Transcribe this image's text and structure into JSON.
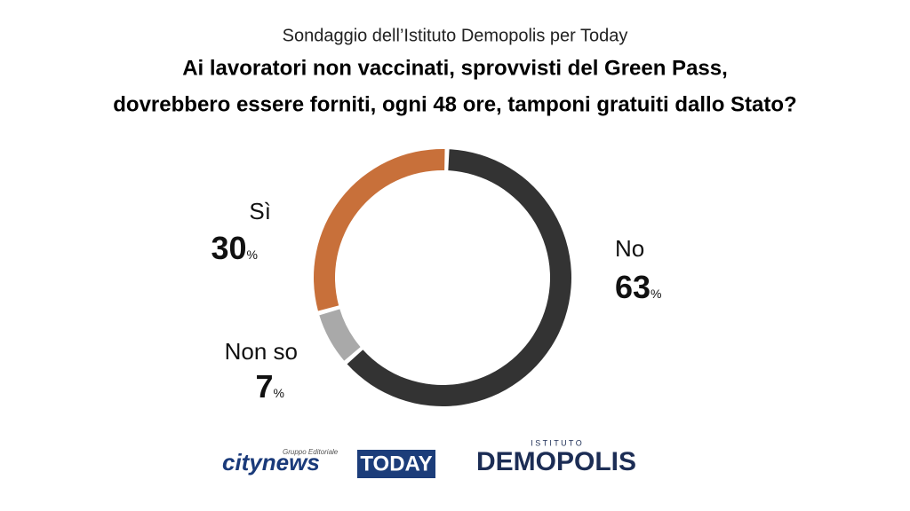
{
  "chart_data": {
    "type": "donut",
    "subtitle": "Sondaggio dell’Istituto Demopolis per Today",
    "title": [
      "Ai lavoratori non vaccinati, sprovvisti del Green Pass,",
      "dovrebbero essere forniti, ogni 48 ore, tamponi gratuiti dallo Stato?"
    ],
    "categories": [
      "No",
      "Non so",
      "Sì"
    ],
    "values": [
      63,
      7,
      30
    ],
    "colors": [
      "#333333",
      "#a9a9a9",
      "#c8703a"
    ],
    "unit": "%"
  },
  "logos": {
    "citynews_tag": "Gruppo Editoriale",
    "citynews": "citynews",
    "today": "TODAY",
    "demopolis_tag": "I S T I T U T O",
    "demopolis": "DEMOPOLIS"
  }
}
